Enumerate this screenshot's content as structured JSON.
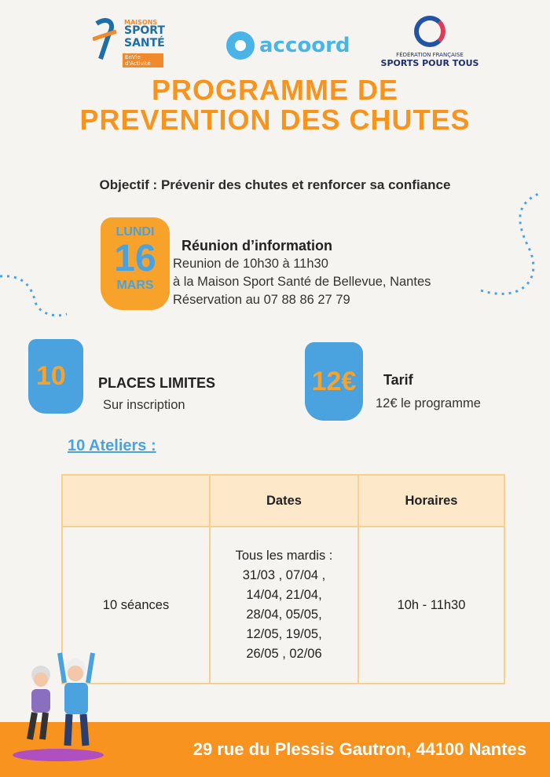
{
  "logos": {
    "maisons_sport_sante": {
      "line1": "MAISONS",
      "line2": "SPORT",
      "line3": "SANTÉ",
      "tagline": "EnVie d'Activité"
    },
    "accoord": "accoord",
    "ffspt": {
      "line1": "FÉDÉRATION FRANÇAISE",
      "line2": "SPORTS POUR TOUS"
    }
  },
  "title": {
    "line1": "PROGRAMME DE",
    "line2": "PREVENTION DES CHUTES"
  },
  "objective": "Objectif : Prévenir des chutes et renforcer sa confiance",
  "date_badge": {
    "day": "LUNDI",
    "number": "16",
    "month": "MARS"
  },
  "meeting": {
    "heading": "Réunion d’information",
    "lines": [
      "Reunion de 10h30 à 11h30",
      "à la Maison Sport Santé de Bellevue, Nantes",
      "Réservation au  07 88 86 27 79"
    ]
  },
  "places": {
    "number": "10",
    "title": "PLACES LIMITES",
    "subtitle": "Sur inscription"
  },
  "price": {
    "badge": "12€",
    "title": "Tarif",
    "subtitle": "12€ le programme"
  },
  "workshops_heading": "10 Ateliers :",
  "table": {
    "headers": [
      "",
      "Dates",
      "Horaires"
    ],
    "row": {
      "sessions": "10 séances",
      "dates": [
        "Tous les mardis :",
        "31/03 , 07/04 ,",
        "14/04, 21/04,",
        "28/04, 05/05,",
        "12/05, 19/05,",
        "26/05 , 02/06"
      ],
      "hours": "10h - 11h30"
    }
  },
  "footer_address": "29 rue du Plessis Gautron, 44100 Nantes",
  "colors": {
    "orange": "#f7941d",
    "blue": "#4aa3df",
    "table_header": "#fde9c9",
    "background": "#f6f4f0"
  }
}
